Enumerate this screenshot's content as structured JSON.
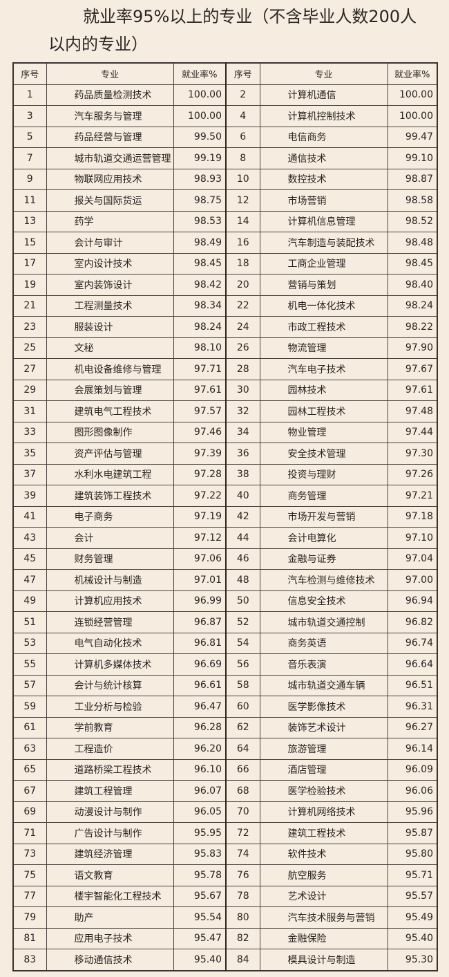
{
  "title": {
    "line1": "就业率95%以上的专业（不含毕业人数200人",
    "line2": "以内的专业）"
  },
  "table": {
    "headers": [
      "序号",
      "专业",
      "就业率%",
      "序号",
      "专业",
      "就业率%"
    ],
    "rows": [
      [
        1,
        "药品质量检测技术",
        "100.00",
        2,
        "计算机通信",
        "100.00"
      ],
      [
        3,
        "汽车服务与管理",
        "100.00",
        4,
        "计算机控制技术",
        "100.00"
      ],
      [
        5,
        "药品经营与管理",
        "99.50",
        6,
        "电信商务",
        "99.47"
      ],
      [
        7,
        "城市轨道交通运营管理",
        "99.19",
        8,
        "通信技术",
        "99.10"
      ],
      [
        9,
        "物联网应用技术",
        "98.93",
        10,
        "数控技术",
        "98.87"
      ],
      [
        11,
        "报关与国际货运",
        "98.75",
        12,
        "市场营销",
        "98.58"
      ],
      [
        13,
        "药学",
        "98.53",
        14,
        "计算机信息管理",
        "98.52"
      ],
      [
        15,
        "会计与审计",
        "98.49",
        16,
        "汽车制造与装配技术",
        "98.48"
      ],
      [
        17,
        "室内设计技术",
        "98.45",
        18,
        "工商企业管理",
        "98.45"
      ],
      [
        19,
        "室内装饰设计",
        "98.42",
        20,
        "营销与策划",
        "98.40"
      ],
      [
        21,
        "工程测量技术",
        "98.34",
        22,
        "机电一体化技术",
        "98.24"
      ],
      [
        23,
        "服装设计",
        "98.24",
        24,
        "市政工程技术",
        "98.22"
      ],
      [
        25,
        "文秘",
        "98.10",
        26,
        "物流管理",
        "97.90"
      ],
      [
        27,
        "机电设备维修与管理",
        "97.71",
        28,
        "汽车电子技术",
        "97.67"
      ],
      [
        29,
        "会展策划与管理",
        "97.61",
        30,
        "园林技术",
        "97.61"
      ],
      [
        31,
        "建筑电气工程技术",
        "97.57",
        32,
        "园林工程技术",
        "97.48"
      ],
      [
        33,
        "图形图像制作",
        "97.46",
        34,
        "物业管理",
        "97.44"
      ],
      [
        35,
        "资产评估与管理",
        "97.39",
        36,
        "安全技术管理",
        "97.30"
      ],
      [
        37,
        "水利水电建筑工程",
        "97.28",
        38,
        "投资与理财",
        "97.26"
      ],
      [
        39,
        "建筑装饰工程技术",
        "97.22",
        40,
        "商务管理",
        "97.21"
      ],
      [
        41,
        "电子商务",
        "97.19",
        42,
        "市场开发与营销",
        "97.18"
      ],
      [
        43,
        "会计",
        "97.12",
        44,
        "会计电算化",
        "97.10"
      ],
      [
        45,
        "财务管理",
        "97.06",
        46,
        "金融与证券",
        "97.04"
      ],
      [
        47,
        "机械设计与制造",
        "97.01",
        48,
        "汽车检测与维修技术",
        "97.00"
      ],
      [
        49,
        "计算机应用技术",
        "96.99",
        50,
        "信息安全技术",
        "96.94"
      ],
      [
        51,
        "连锁经营管理",
        "96.87",
        52,
        "城市轨道交通控制",
        "96.82"
      ],
      [
        53,
        "电气自动化技术",
        "96.81",
        54,
        "商务英语",
        "96.74"
      ],
      [
        55,
        "计算机多媒体技术",
        "96.69",
        56,
        "音乐表演",
        "96.64"
      ],
      [
        57,
        "会计与统计核算",
        "96.61",
        58,
        "城市轨道交通车辆",
        "96.51"
      ],
      [
        59,
        "工业分析与检验",
        "96.47",
        60,
        "医学影像技术",
        "96.31"
      ],
      [
        61,
        "学前教育",
        "96.28",
        62,
        "装饰艺术设计",
        "96.27"
      ],
      [
        63,
        "工程造价",
        "96.20",
        64,
        "旅游管理",
        "96.14"
      ],
      [
        65,
        "道路桥梁工程技术",
        "96.10",
        66,
        "酒店管理",
        "96.09"
      ],
      [
        67,
        "建筑工程管理",
        "96.07",
        68,
        "医学检验技术",
        "96.06"
      ],
      [
        69,
        "动漫设计与制作",
        "96.05",
        70,
        "计算机网络技术",
        "95.96"
      ],
      [
        71,
        "广告设计与制作",
        "95.95",
        72,
        "建筑工程技术",
        "95.87"
      ],
      [
        73,
        "建筑经济管理",
        "95.83",
        74,
        "软件技术",
        "95.80"
      ],
      [
        75,
        "语文教育",
        "95.78",
        76,
        "航空服务",
        "95.71"
      ],
      [
        77,
        "楼宇智能化工程技术",
        "95.67",
        78,
        "艺术设计",
        "95.57"
      ],
      [
        79,
        "助产",
        "95.54",
        80,
        "汽车技术服务与营销",
        "95.49"
      ],
      [
        81,
        "应用电子技术",
        "95.47",
        82,
        "金融保险",
        "95.40"
      ],
      [
        83,
        "移动通信技术",
        "95.40",
        84,
        "模具设计与制造",
        "95.30"
      ]
    ]
  }
}
